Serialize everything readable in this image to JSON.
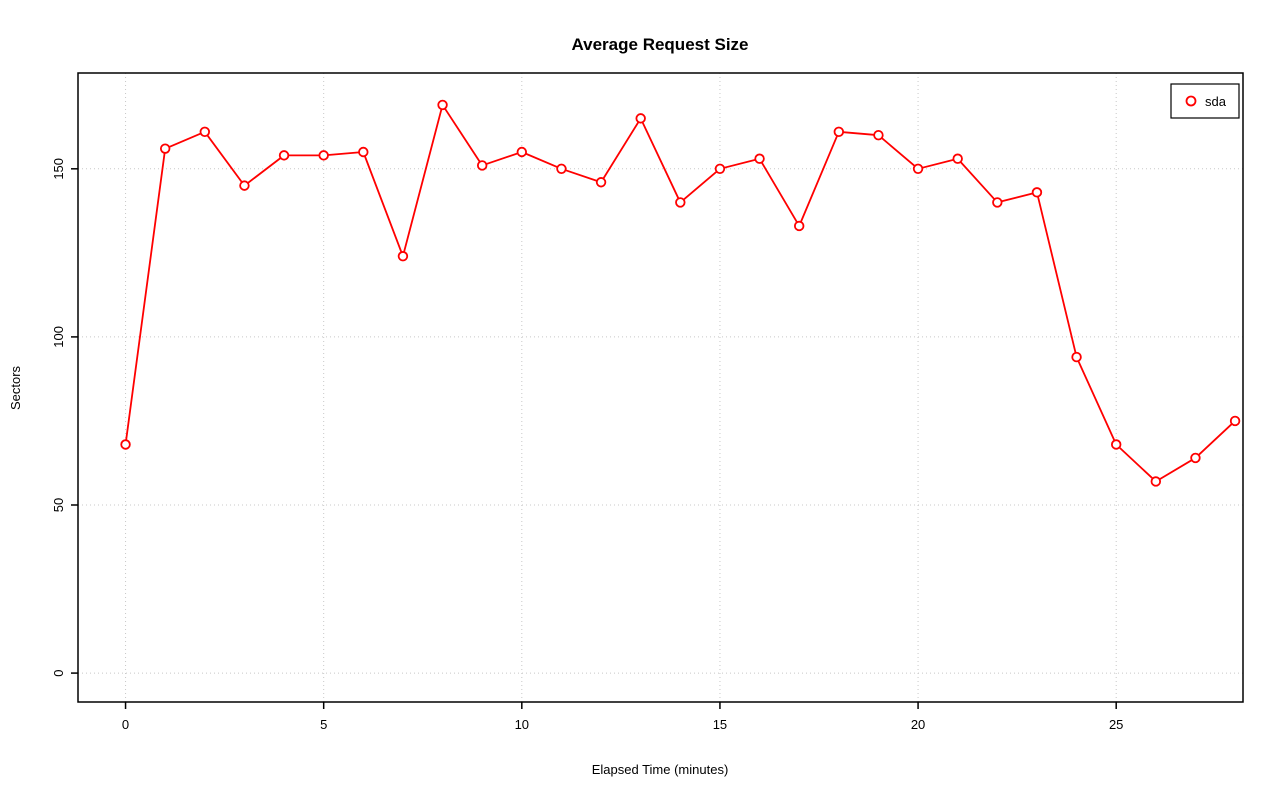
{
  "chart": {
    "title": "Average Request Size",
    "xlabel": "Elapsed Time (minutes)",
    "ylabel": "Sectors",
    "legend": {
      "label": "sda"
    }
  },
  "chart_data": {
    "type": "line",
    "title": "Average Request Size",
    "xlabel": "Elapsed Time (minutes)",
    "ylabel": "Sectors",
    "x": [
      0,
      1,
      2,
      3,
      4,
      5,
      6,
      7,
      8,
      9,
      10,
      11,
      12,
      13,
      14,
      15,
      16,
      17,
      18,
      19,
      20,
      21,
      22,
      23,
      24,
      25,
      26,
      27,
      28
    ],
    "series": [
      {
        "name": "sda",
        "color": "#FF0000",
        "marker": "open-circle",
        "values": [
          68,
          156,
          161,
          145,
          154,
          154,
          155,
          124,
          169,
          151,
          155,
          150,
          146,
          165,
          140,
          150,
          153,
          133,
          161,
          160,
          150,
          153,
          140,
          143,
          94,
          68,
          57,
          64,
          75
        ]
      }
    ],
    "x_ticks": [
      0,
      5,
      10,
      15,
      20,
      25
    ],
    "y_ticks": [
      0,
      50,
      100,
      150
    ],
    "xlim": [
      -1.2,
      28.2
    ],
    "ylim": [
      -8.6,
      178.5
    ],
    "grid": true,
    "grid_style": "dotted",
    "grid_color": "#c8c8c8",
    "box_color": "#000000",
    "legend_position": "top-right",
    "background": "#ffffff"
  }
}
